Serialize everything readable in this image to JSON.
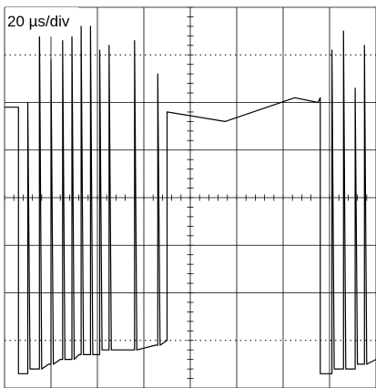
{
  "chart_data": {
    "type": "line",
    "title": "",
    "annotation": "20 µs/div",
    "grid": true,
    "divisions": {
      "x": 8,
      "y": 8
    },
    "x_units": "µs",
    "x_per_div": 20,
    "xlim": [
      0,
      160
    ],
    "ylim": [
      0,
      8
    ],
    "series": [
      {
        "name": "",
        "color": "#000000",
        "x": [
          0,
          5,
          6,
          6,
          10,
          10,
          11,
          14,
          15,
          15,
          16,
          16,
          19,
          20,
          20,
          21,
          21,
          24,
          25,
          25,
          26,
          26,
          28,
          29,
          29,
          30,
          30,
          32,
          33,
          33,
          34,
          34,
          36,
          37,
          37,
          38,
          38,
          40,
          41,
          41,
          42,
          42,
          44,
          45,
          45,
          46,
          46,
          55,
          56,
          56,
          57,
          57,
          65,
          66,
          66,
          67,
          67,
          70,
          70,
          95,
          125,
          135,
          136,
          136,
          137,
          137,
          140,
          141,
          141,
          142,
          142,
          145,
          146,
          146,
          147,
          147,
          150,
          151,
          151,
          152,
          152,
          154,
          155,
          155,
          156,
          156,
          160
        ],
        "y": [
          5.9,
          5.9,
          5.9,
          0.3,
          0.3,
          6.0,
          0.4,
          0.4,
          0.4,
          7.8,
          0.4,
          0.4,
          0.5,
          0.5,
          6.9,
          0.5,
          0.5,
          0.6,
          0.6,
          7.3,
          0.6,
          0.6,
          0.6,
          0.6,
          7.5,
          0.6,
          0.6,
          0.7,
          0.7,
          7.6,
          0.7,
          0.7,
          0.7,
          0.7,
          7.6,
          0.7,
          0.7,
          0.7,
          0.7,
          7.1,
          0.8,
          0.8,
          0.8,
          0.8,
          7.2,
          0.8,
          0.8,
          0.8,
          0.8,
          7.3,
          0.8,
          0.8,
          0.9,
          0.9,
          6.6,
          0.9,
          0.9,
          1.0,
          5.8,
          5.6,
          6.1,
          6.0,
          6.1,
          0.3,
          0.3,
          0.3,
          0.3,
          0.3,
          7.1,
          0.4,
          0.4,
          0.4,
          0.4,
          7.5,
          0.4,
          0.4,
          0.4,
          0.4,
          6.3,
          0.5,
          0.5,
          0.5,
          0.5,
          7.2,
          0.5,
          0.5,
          0.6
        ]
      }
    ]
  }
}
